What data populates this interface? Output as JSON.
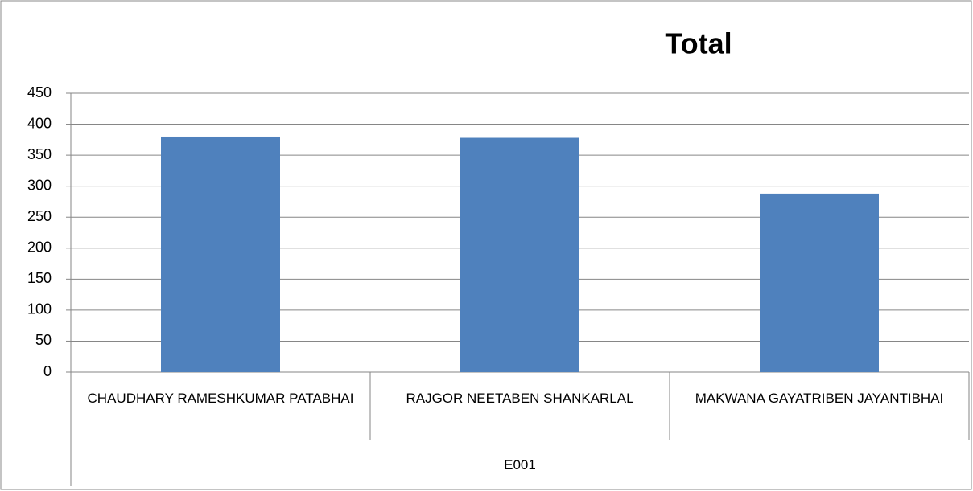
{
  "chart_data": {
    "type": "bar",
    "title": "Total",
    "categories": [
      "CHAUDHARY RAMESHKUMAR PATABHAI",
      "RAJGOR  NEETABEN SHANKARLAL",
      "MAKWANA GAYATRIBEN JAYANTIBHAI"
    ],
    "group": "E001",
    "values": [
      380,
      378,
      288
    ],
    "color": "#4f81bd",
    "ylim": [
      0,
      450
    ],
    "yticks": [
      0,
      50,
      100,
      150,
      200,
      250,
      300,
      350,
      400,
      450
    ],
    "grid": true
  }
}
